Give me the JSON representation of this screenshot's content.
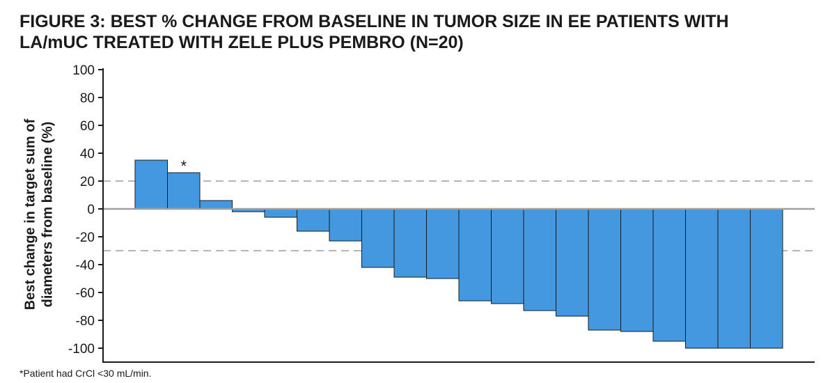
{
  "chart_data": {
    "type": "bar",
    "title_lines": [
      "FIGURE 3: BEST % CHANGE FROM BASELINE IN TUMOR SIZE IN EE PATIENTS WITH",
      "LA/mUC TREATED WITH ZELE PLUS PEMBRO (N=20)"
    ],
    "ylabel_lines": [
      "Best change in target sum of",
      "diameters from baseline (%)"
    ],
    "xlabel": "",
    "ylim": [
      -100,
      100
    ],
    "yticks": [
      100,
      80,
      60,
      40,
      20,
      0,
      -20,
      -40,
      -60,
      -80,
      -100
    ],
    "reference_lines": [
      20,
      -30
    ],
    "values": [
      35,
      26,
      6,
      -2,
      -6,
      -16,
      -23,
      -42,
      -49,
      -50,
      -66,
      -68,
      -73,
      -77,
      -87,
      -88,
      -95,
      -100,
      -100,
      -100
    ],
    "annotations": [
      {
        "bar_index": 1,
        "text": "*"
      }
    ],
    "bar_color": "#4498e0",
    "bar_edge_color": "#1a1a1a",
    "reference_line_color": "#b5b5b5",
    "zero_line_color": "#a0a0a0",
    "grid": false,
    "legend": "none",
    "footnote": "*Patient had CrCl <30 mL/min."
  }
}
